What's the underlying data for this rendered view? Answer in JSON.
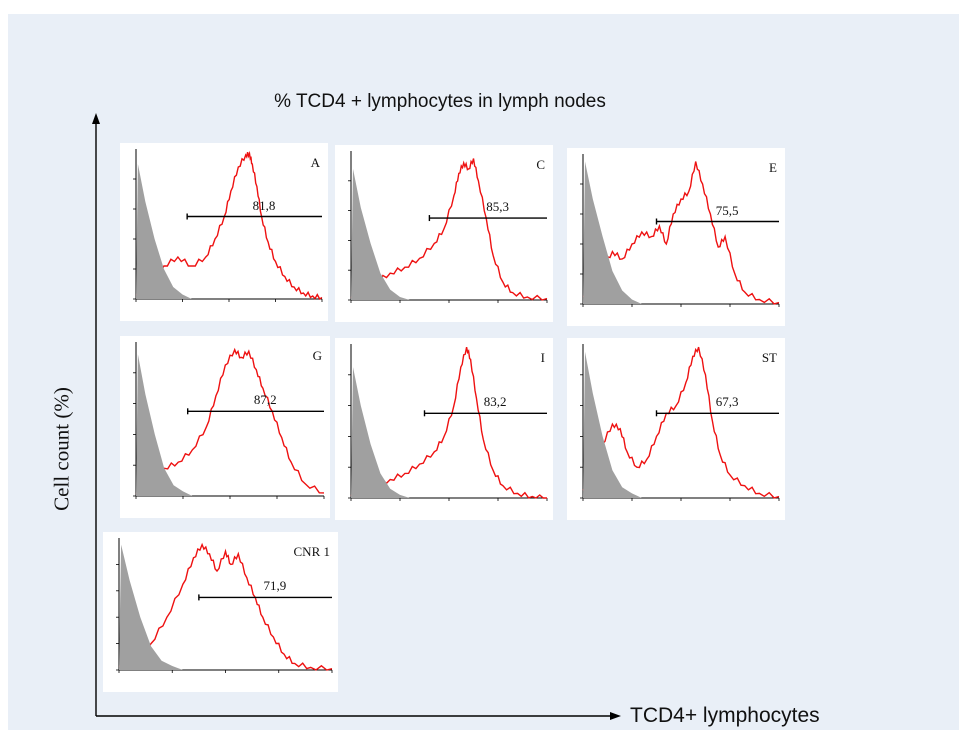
{
  "title": "% TCD4 + lymphocytes in lymph nodes",
  "y_label": "Cell count (%)",
  "x_label": "TCD4+ lymphocytes",
  "colors": {
    "background": "#e9eff7",
    "sample_curve": "#ee1111",
    "control_fill": "#a0a0a0",
    "axis": "#000000"
  },
  "chart_data": [
    {
      "type": "area",
      "panel": "A",
      "gate_value": "81,8",
      "gate_range_log": [
        0.55,
        2.0
      ],
      "xlim_log": [
        0,
        2
      ],
      "ylim": [
        0,
        100
      ],
      "series": [
        {
          "name": "",
          "x_log": [
            0,
            0.08,
            0.18,
            0.3,
            0.45,
            0.6,
            0.75,
            0.85,
            0.95,
            1.02,
            1.1,
            1.18,
            1.22,
            1.25,
            1.3,
            1.35,
            1.42,
            1.5,
            1.6,
            1.7,
            1.8,
            1.9,
            2.0
          ],
          "values": [
            3,
            8,
            15,
            22,
            28,
            22,
            28,
            40,
            55,
            72,
            88,
            96,
            97,
            90,
            75,
            55,
            38,
            25,
            15,
            8,
            4,
            2,
            1
          ]
        },
        {
          "name": "",
          "x_log": [
            0,
            0.02,
            0.1,
            0.2,
            0.3,
            0.4,
            0.5,
            0.6
          ],
          "values": [
            0,
            90,
            65,
            40,
            20,
            8,
            3,
            0
          ],
          "role": "control"
        }
      ]
    },
    {
      "type": "area",
      "panel": "C",
      "gate_value": "85,3",
      "gate_range_log": [
        0.8,
        2.0
      ],
      "xlim_log": [
        0,
        2
      ],
      "ylim": [
        0,
        100
      ],
      "series": [
        {
          "name": "",
          "x_log": [
            0,
            0.1,
            0.25,
            0.4,
            0.55,
            0.7,
            0.85,
            0.95,
            1.05,
            1.1,
            1.15,
            1.2,
            1.25,
            1.3,
            1.38,
            1.45,
            1.55,
            1.65,
            1.8,
            2.0
          ],
          "values": [
            2,
            6,
            12,
            18,
            22,
            28,
            38,
            48,
            70,
            85,
            92,
            88,
            95,
            80,
            55,
            30,
            12,
            5,
            2,
            1
          ]
        },
        {
          "name": "",
          "x_log": [
            0,
            0.02,
            0.1,
            0.2,
            0.3,
            0.4,
            0.5,
            0.6
          ],
          "values": [
            0,
            88,
            62,
            38,
            18,
            7,
            2,
            0
          ],
          "role": "control"
        }
      ]
    },
    {
      "type": "area",
      "panel": "E",
      "gate_value": "75,5",
      "gate_range_log": [
        0.75,
        2.0
      ],
      "xlim_log": [
        0,
        2
      ],
      "ylim": [
        0,
        100
      ],
      "series": [
        {
          "name": "",
          "x_log": [
            0,
            0.1,
            0.2,
            0.3,
            0.4,
            0.5,
            0.6,
            0.7,
            0.78,
            0.85,
            0.92,
            1.0,
            1.08,
            1.15,
            1.22,
            1.3,
            1.38,
            1.45,
            1.55,
            1.65,
            1.8,
            2.0
          ],
          "values": [
            5,
            12,
            25,
            35,
            30,
            40,
            48,
            45,
            52,
            40,
            60,
            70,
            75,
            95,
            80,
            60,
            38,
            45,
            20,
            8,
            3,
            1
          ]
        },
        {
          "name": "",
          "x_log": [
            0,
            0.02,
            0.1,
            0.2,
            0.3,
            0.4,
            0.5,
            0.6
          ],
          "values": [
            0,
            95,
            70,
            45,
            22,
            9,
            3,
            0
          ],
          "role": "control"
        }
      ]
    },
    {
      "type": "area",
      "panel": "G",
      "gate_value": "87,2",
      "gate_range_log": [
        0.55,
        2.0
      ],
      "xlim_log": [
        0,
        2
      ],
      "ylim": [
        0,
        100
      ],
      "series": [
        {
          "name": "",
          "x_log": [
            0,
            0.1,
            0.2,
            0.3,
            0.45,
            0.6,
            0.75,
            0.85,
            0.95,
            1.05,
            1.12,
            1.2,
            1.28,
            1.35,
            1.45,
            1.55,
            1.65,
            1.8,
            2.0
          ],
          "values": [
            2,
            6,
            12,
            18,
            22,
            30,
            45,
            65,
            85,
            95,
            90,
            94,
            82,
            70,
            55,
            38,
            22,
            8,
            2
          ]
        },
        {
          "name": "",
          "x_log": [
            0,
            0.02,
            0.1,
            0.2,
            0.3,
            0.4,
            0.5,
            0.6
          ],
          "values": [
            0,
            92,
            66,
            40,
            18,
            7,
            3,
            0
          ],
          "role": "control"
        }
      ]
    },
    {
      "type": "area",
      "panel": "I",
      "gate_value": "83,2",
      "gate_range_log": [
        0.75,
        2.0
      ],
      "xlim_log": [
        0,
        2
      ],
      "ylim": [
        0,
        100
      ],
      "series": [
        {
          "name": "",
          "x_log": [
            0,
            0.1,
            0.25,
            0.4,
            0.55,
            0.7,
            0.85,
            0.95,
            1.05,
            1.12,
            1.18,
            1.22,
            1.28,
            1.35,
            1.45,
            1.55,
            1.7,
            1.85,
            2.0
          ],
          "values": [
            2,
            5,
            8,
            12,
            16,
            22,
            30,
            40,
            60,
            85,
            98,
            90,
            65,
            38,
            18,
            8,
            3,
            1,
            0
          ]
        },
        {
          "name": "",
          "x_log": [
            0,
            0.02,
            0.1,
            0.2,
            0.3,
            0.4,
            0.5,
            0.6
          ],
          "values": [
            0,
            85,
            60,
            35,
            16,
            6,
            2,
            0
          ],
          "role": "control"
        }
      ]
    },
    {
      "type": "area",
      "panel": "ST",
      "gate_value": "67,3",
      "gate_range_log": [
        0.75,
        2.0
      ],
      "xlim_log": [
        0,
        2
      ],
      "ylim": [
        0,
        100
      ],
      "series": [
        {
          "name": "",
          "x_log": [
            0,
            0.1,
            0.2,
            0.3,
            0.38,
            0.45,
            0.55,
            0.65,
            0.75,
            0.85,
            0.95,
            1.05,
            1.12,
            1.18,
            1.25,
            1.32,
            1.4,
            1.5,
            1.65,
            1.8,
            2.0
          ],
          "values": [
            5,
            15,
            35,
            48,
            45,
            30,
            20,
            25,
            40,
            55,
            60,
            75,
            92,
            98,
            80,
            50,
            28,
            15,
            8,
            3,
            1
          ]
        },
        {
          "name": "",
          "x_log": [
            0,
            0.02,
            0.1,
            0.2,
            0.3,
            0.4,
            0.5,
            0.6
          ],
          "values": [
            0,
            95,
            68,
            40,
            18,
            7,
            3,
            0
          ],
          "role": "control"
        }
      ]
    },
    {
      "type": "area",
      "panel": "CNR 1",
      "gate_value": "71,9",
      "gate_range_log": [
        0.75,
        2.0
      ],
      "xlim_log": [
        0,
        2
      ],
      "ylim": [
        0,
        100
      ],
      "series": [
        {
          "name": "",
          "x_log": [
            0,
            0.15,
            0.3,
            0.45,
            0.6,
            0.7,
            0.78,
            0.85,
            0.92,
            1.0,
            1.05,
            1.12,
            1.2,
            1.28,
            1.35,
            1.45,
            1.55,
            1.65,
            1.8,
            2.0
          ],
          "values": [
            3,
            8,
            20,
            40,
            65,
            85,
            95,
            88,
            75,
            90,
            80,
            88,
            70,
            55,
            40,
            25,
            12,
            5,
            2,
            1
          ]
        },
        {
          "name": "",
          "x_log": [
            0,
            0.02,
            0.1,
            0.2,
            0.3,
            0.4,
            0.5,
            0.6
          ],
          "values": [
            0,
            95,
            68,
            40,
            18,
            7,
            3,
            0
          ],
          "role": "control"
        }
      ]
    }
  ]
}
